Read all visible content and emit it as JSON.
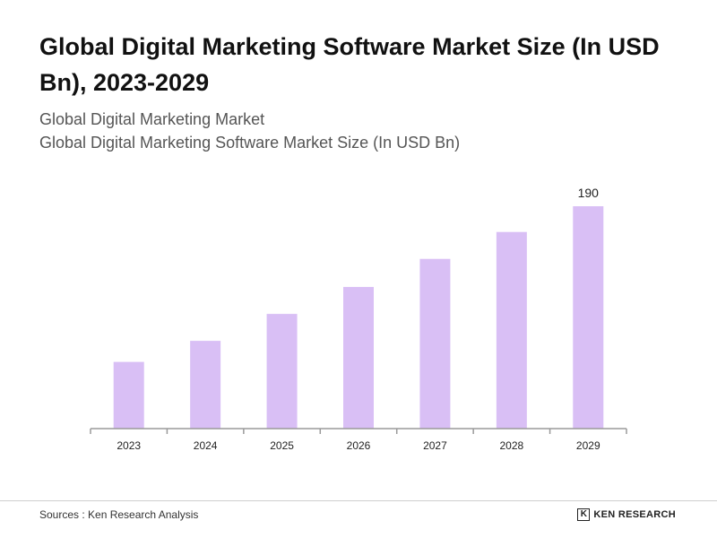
{
  "header": {
    "title": "Global Digital Marketing Software Market Size (In USD Bn), 2023-2029",
    "subtitle1": "Global Digital Marketing Market",
    "subtitle2": "Global Digital Marketing Software Market Size (In USD Bn)"
  },
  "chart_data": {
    "type": "bar",
    "categories": [
      "2023",
      "2024",
      "2025",
      "2026",
      "2027",
      "2028",
      "2029"
    ],
    "values": [
      57,
      75,
      98,
      121,
      145,
      168,
      190
    ],
    "data_labels": [
      null,
      null,
      null,
      null,
      null,
      null,
      "190"
    ],
    "ylim": [
      0,
      190
    ],
    "bar_color": "#d9bff5",
    "axis_color": "#9a9a9a",
    "grid": false,
    "legend": "none"
  },
  "footer": {
    "source": "Sources : Ken Research Analysis",
    "brand_mark": "K",
    "brand_name": "KEN RESEARCH"
  }
}
